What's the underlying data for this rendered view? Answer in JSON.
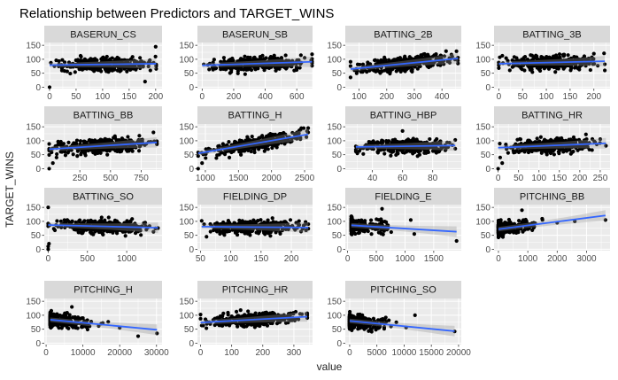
{
  "chart_data": {
    "type": "scatter",
    "title": "Relationship between Predictors and TARGET_WINS",
    "xlabel": "value",
    "ylabel": "TARGET_WINS",
    "y_ticks": [
      0,
      50,
      100,
      150
    ],
    "ylim": [
      -5,
      160
    ],
    "grid": true,
    "trend_line": "linear fit with confidence band",
    "colors": {
      "panel_bg": "#ebebeb",
      "strip_bg": "#d9d9d9",
      "grid": "#ffffff",
      "points": "#000000",
      "fit_line": "#3366ff",
      "band": "#999999"
    },
    "panels": [
      {
        "label": "BASERUN_CS",
        "xlim": [
          -10,
          212
        ],
        "x_ticks": [
          0,
          50,
          100,
          150,
          200
        ],
        "x_range": [
          0,
          201
        ],
        "fit": [
          [
            0,
            79
          ],
          [
            201,
            84
          ]
        ],
        "outliers": [
          [
            200,
            145
          ],
          [
            180,
            20
          ],
          [
            0,
            0
          ],
          [
            190,
            60
          ]
        ]
      },
      {
        "label": "BASERUN_SB",
        "xlim": [
          -30,
          700
        ],
        "x_ticks": [
          0,
          200,
          400,
          600
        ],
        "x_range": [
          0,
          697
        ],
        "fit": [
          [
            0,
            78
          ],
          [
            697,
            91
          ]
        ],
        "outliers": [
          [
            697,
            118
          ],
          [
            650,
            105
          ],
          [
            600,
            90
          ]
        ]
      },
      {
        "label": "BATTING_2B",
        "xlim": [
          50,
          470
        ],
        "x_ticks": [
          100,
          200,
          300,
          400
        ],
        "x_range": [
          69,
          458
        ],
        "fit": [
          [
            69,
            65
          ],
          [
            458,
            103
          ]
        ],
        "outliers": [
          [
            458,
            85
          ],
          [
            430,
            100
          ],
          [
            69,
            35
          ]
        ]
      },
      {
        "label": "BATTING_3B",
        "xlim": [
          -10,
          234
        ],
        "x_ticks": [
          0,
          50,
          100,
          150,
          200
        ],
        "x_range": [
          0,
          223
        ],
        "fit": [
          [
            0,
            84
          ],
          [
            223,
            93
          ]
        ],
        "outliers": [
          [
            223,
            60
          ],
          [
            200,
            120
          ]
        ]
      },
      {
        "label": "BATTING_BB",
        "xlim": [
          -40,
          920
        ],
        "x_ticks": [
          250,
          500,
          750
        ],
        "x_range": [
          0,
          878
        ],
        "fit": [
          [
            0,
            70
          ],
          [
            878,
            94
          ]
        ],
        "outliers": [
          [
            0,
            0
          ],
          [
            30,
            20
          ],
          [
            60,
            40
          ],
          [
            850,
            130
          ]
        ]
      },
      {
        "label": "BATTING_H",
        "xlim": [
          880,
          2620
        ],
        "x_ticks": [
          1000,
          1500,
          2000,
          2500
        ],
        "x_range": [
          891,
          2554
        ],
        "fit": [
          [
            891,
            55
          ],
          [
            2554,
            123
          ]
        ],
        "outliers": [
          [
            891,
            0
          ],
          [
            950,
            20
          ],
          [
            2554,
            130
          ],
          [
            2450,
            145
          ]
        ]
      },
      {
        "label": "BATTING_HBP",
        "xlim": [
          22,
          99
        ],
        "x_ticks": [
          40,
          60,
          80
        ],
        "x_range": [
          29,
          95
        ],
        "fit": [
          [
            29,
            78
          ],
          [
            95,
            83
          ]
        ],
        "outliers": [
          [
            60,
            135
          ],
          [
            70,
            45
          ],
          [
            30,
            55
          ]
        ]
      },
      {
        "label": "BATTING_HR",
        "xlim": [
          -10,
          274
        ],
        "x_ticks": [
          0,
          50,
          100,
          150,
          200,
          250
        ],
        "x_range": [
          0,
          264
        ],
        "fit": [
          [
            0,
            75
          ],
          [
            264,
            91
          ]
        ],
        "outliers": [
          [
            0,
            0
          ],
          [
            10,
            20
          ],
          [
            5,
            40
          ]
        ]
      },
      {
        "label": "BATTING_SO",
        "xlim": [
          -50,
          1450
        ],
        "x_ticks": [
          0,
          500,
          1000
        ],
        "x_range": [
          0,
          1399
        ],
        "fit": [
          [
            0,
            87
          ],
          [
            1399,
            77
          ]
        ],
        "outliers": [
          [
            0,
            0
          ],
          [
            0,
            10
          ],
          [
            10,
            20
          ],
          [
            0,
            150
          ]
        ]
      },
      {
        "label": "FIELDING_DP",
        "xlim": [
          45,
          235
        ],
        "x_ticks": [
          50,
          100,
          150,
          200
        ],
        "x_range": [
          52,
          228
        ],
        "fit": [
          [
            52,
            81
          ],
          [
            228,
            78
          ]
        ],
        "outliers": [
          [
            228,
            90
          ],
          [
            60,
            45
          ]
        ]
      },
      {
        "label": "FIELDING_E",
        "xlim": [
          -40,
          1980
        ],
        "x_ticks": [
          0,
          500,
          1000,
          1500
        ],
        "x_range": [
          65,
          1898
        ],
        "fit": [
          [
            65,
            86
          ],
          [
            1898,
            63
          ]
        ],
        "outliers": [
          [
            1898,
            30
          ],
          [
            600,
            145
          ],
          [
            1100,
            105
          ]
        ]
      },
      {
        "label": "PITCHING_BB",
        "xlim": [
          -150,
          3800
        ],
        "x_ticks": [
          0,
          1000,
          2000,
          3000
        ],
        "x_range": [
          0,
          3645
        ],
        "fit": [
          [
            0,
            72
          ],
          [
            3645,
            121
          ]
        ],
        "outliers": [
          [
            3645,
            105
          ],
          [
            2600,
            100
          ],
          [
            2000,
            95
          ],
          [
            1500,
            105
          ],
          [
            1200,
            90
          ],
          [
            900,
            70
          ],
          [
            800,
            140
          ]
        ]
      },
      {
        "label": "PITCHING_H",
        "xlim": [
          -500,
          31500
        ],
        "x_ticks": [
          0,
          10000,
          20000,
          30000
        ],
        "x_range": [
          1137,
          30132
        ],
        "fit": [
          [
            1137,
            84
          ],
          [
            30132,
            48
          ]
        ],
        "outliers": [
          [
            30132,
            35
          ],
          [
            25000,
            25
          ],
          [
            20000,
            55
          ],
          [
            15000,
            70
          ],
          [
            10000,
            90
          ],
          [
            8000,
            60
          ],
          [
            7000,
            130
          ]
        ]
      },
      {
        "label": "PITCHING_HR",
        "xlim": [
          -10,
          360
        ],
        "x_ticks": [
          0,
          100,
          200,
          300
        ],
        "x_range": [
          0,
          343
        ],
        "fit": [
          [
            0,
            74
          ],
          [
            343,
            95
          ]
        ],
        "outliers": [
          [
            343,
            90
          ],
          [
            320,
            105
          ]
        ]
      },
      {
        "label": "PITCHING_SO",
        "xlim": [
          -800,
          20500
        ],
        "x_ticks": [
          0,
          5000,
          10000,
          15000,
          20000
        ],
        "x_range": [
          0,
          19278
        ],
        "fit": [
          [
            0,
            80
          ],
          [
            19278,
            43
          ]
        ],
        "outliers": [
          [
            19278,
            42
          ],
          [
            12000,
            100
          ],
          [
            3000,
            70
          ]
        ]
      }
    ]
  }
}
